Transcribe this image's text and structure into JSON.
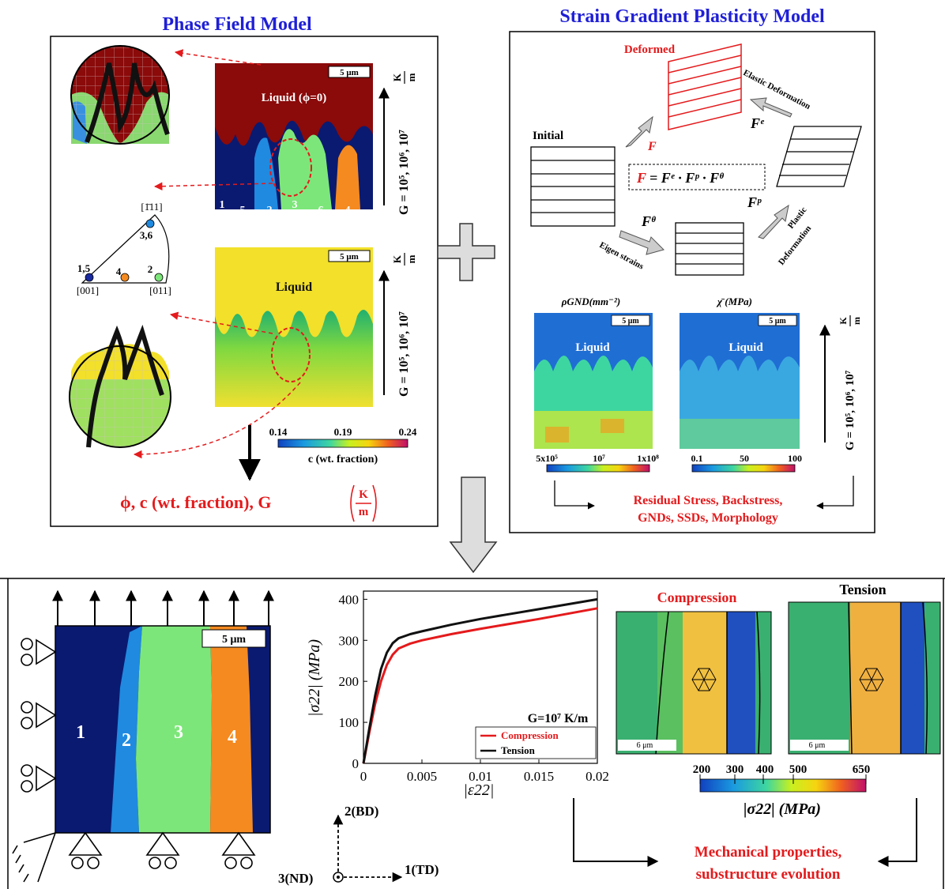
{
  "titles": {
    "phase_field": "Phase Field Model",
    "sgp": "Strain Gradient Plasticity Model"
  },
  "phase_field": {
    "scale_bar": "5 μm",
    "liquid_phi": "Liquid (ϕ=0)",
    "liquid": "Liquid",
    "grain_numbers_top": [
      "1",
      "5",
      "2",
      "3",
      "6",
      "4"
    ],
    "gradient_label": "G = 10⁵, 10⁶, 10⁷",
    "gradient_unit_num": "K",
    "gradient_unit_den": "m",
    "pole_figure": {
      "top": "[1̄11]",
      "left": "[001]",
      "right": "[011]",
      "label_36": "3,6",
      "label_15": "1,5",
      "label_4": "4",
      "label_2": "2"
    },
    "colorbar": {
      "min": "0.14",
      "mid": "0.19",
      "max": "0.24",
      "title": "c (wt. fraction)"
    },
    "output": "ϕ, c (wt. fraction), G",
    "output_unit_num": "K",
    "output_unit_den": "m"
  },
  "sgp": {
    "deformed": "Deformed",
    "initial": "Initial",
    "F": "F",
    "Fe": "Fᵉ",
    "Fp": "Fᵖ",
    "Ftheta": "Fᶿ",
    "elastic": "Elastic Deformation",
    "plastic1": "Plastic",
    "plastic2": "Deformation",
    "eigen": "Eigen strains",
    "eq_lhs": "F",
    "eq_rhs": "= Fᵉ · Fᵖ · Fᶿ",
    "rho_title": "ρGND(mm⁻²)",
    "chi_title": "χ̄ (MPa)",
    "scale_bar": "5 μm",
    "liquid": "Liquid",
    "rho_ticks": [
      "5x10⁵",
      "10⁷",
      "1x10⁸"
    ],
    "chi_ticks": [
      "0.1",
      "50",
      "100"
    ],
    "outputs": [
      "Residual Stress, Backstress,",
      "GNDs, SSDs, Morphology"
    ]
  },
  "bottom": {
    "scale_bar": "5 μm",
    "grains": [
      "1",
      "2",
      "3",
      "4"
    ],
    "axes": {
      "bd": "2(BD)",
      "td": "1(TD)",
      "nd": "3(ND)"
    },
    "compression": "Compression",
    "tension": "Tension",
    "micron_label": "6 μm",
    "stress_ticks": [
      "200",
      "300",
      "400",
      "500",
      "650"
    ],
    "stress_title": "|σ22| (MPa)",
    "outputs": [
      "Mechanical properties,",
      "substructure evolution"
    ]
  },
  "chart_data": {
    "type": "line",
    "xlabel": "|ε22|",
    "ylabel": "|σ22| (MPa)",
    "xlim": [
      0,
      0.02
    ],
    "ylim": [
      0,
      420
    ],
    "xticks": [
      "0",
      "0.005",
      "0.01",
      "0.015",
      "0.02"
    ],
    "yticks": [
      "0",
      "100",
      "200",
      "300",
      "400"
    ],
    "annotation": "G=10⁷ K/m",
    "legend_position": "bottom-right",
    "series": [
      {
        "name": "Compression",
        "color": "#e41a1c",
        "x": [
          0,
          0.0005,
          0.001,
          0.0015,
          0.002,
          0.0025,
          0.003,
          0.004,
          0.005,
          0.0075,
          0.01,
          0.0125,
          0.015,
          0.0175,
          0.02
        ],
        "y": [
          0,
          75,
          145,
          200,
          240,
          265,
          280,
          292,
          300,
          315,
          328,
          340,
          352,
          365,
          378
        ]
      },
      {
        "name": "Tension",
        "color": "#111111",
        "x": [
          0,
          0.0005,
          0.001,
          0.0015,
          0.002,
          0.0025,
          0.003,
          0.004,
          0.005,
          0.0075,
          0.01,
          0.0125,
          0.015,
          0.0175,
          0.02
        ],
        "y": [
          0,
          85,
          165,
          230,
          270,
          293,
          305,
          315,
          322,
          338,
          352,
          364,
          376,
          388,
          400
        ]
      }
    ]
  }
}
